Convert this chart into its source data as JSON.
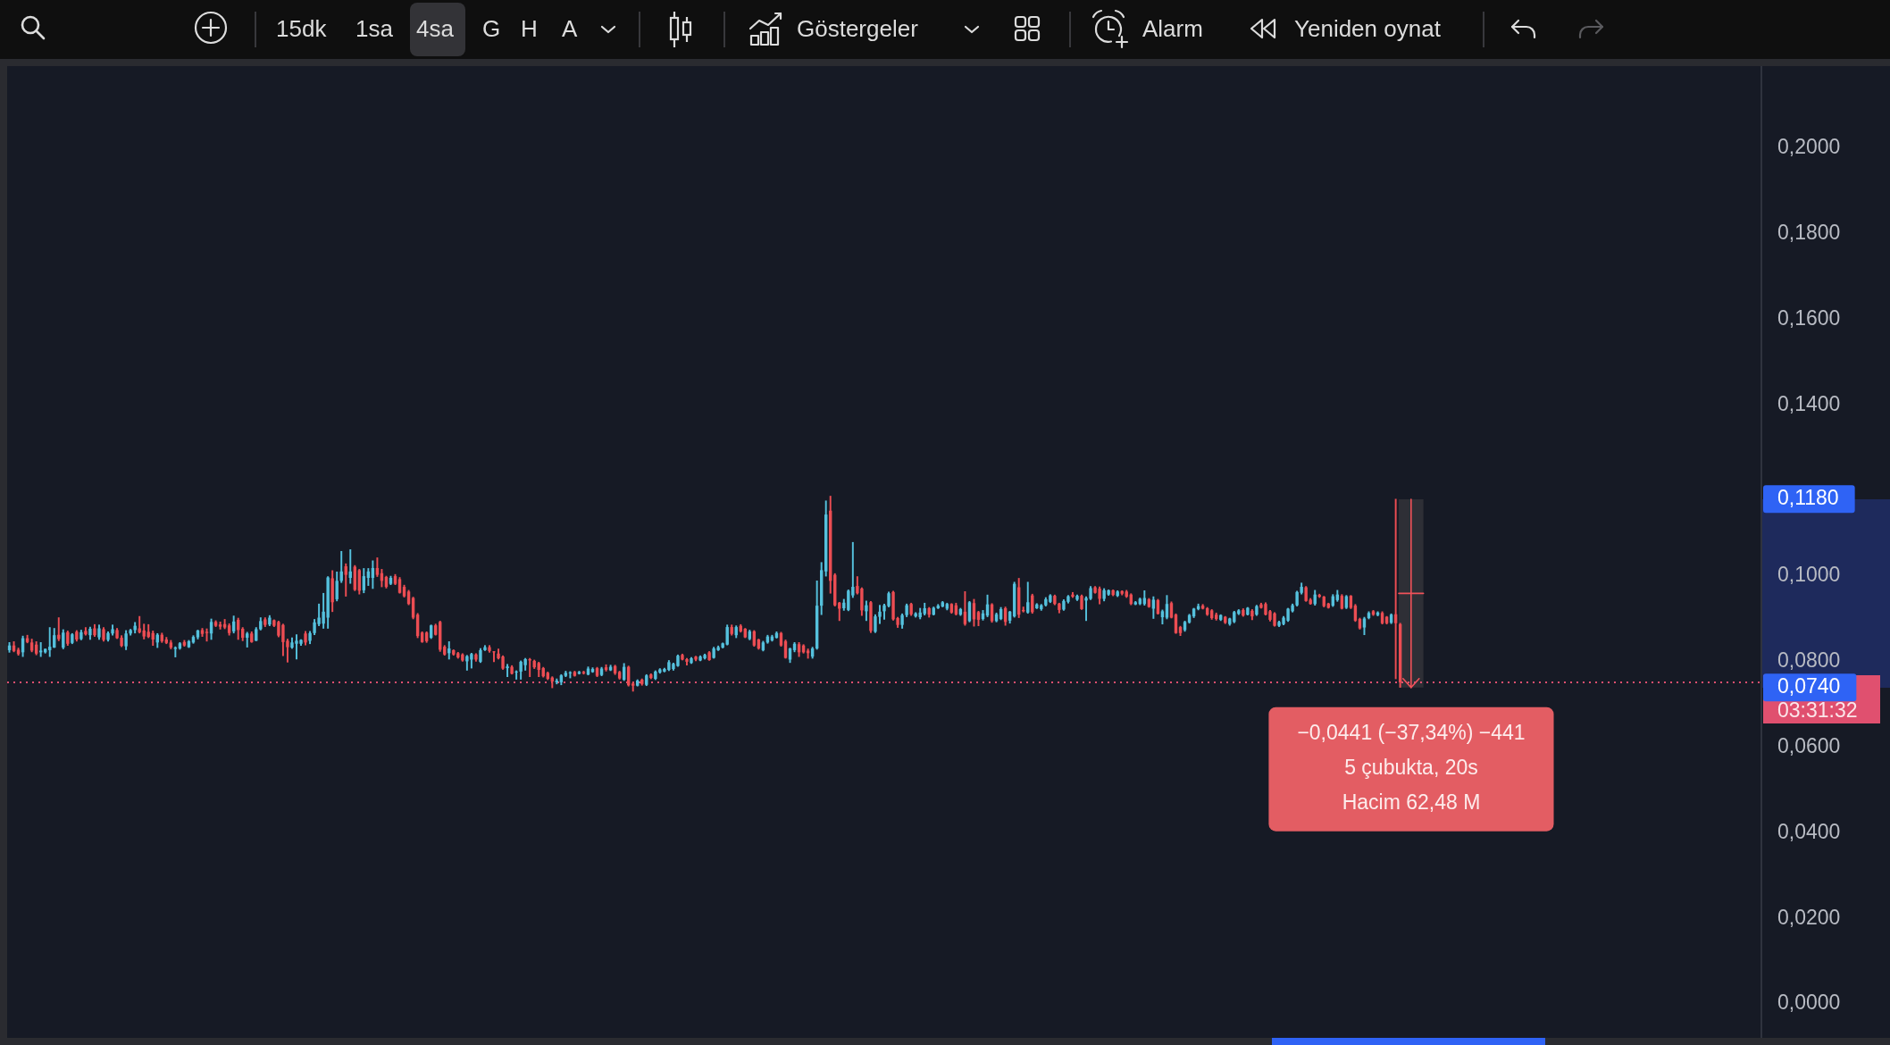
{
  "chart_data": {
    "type": "candlestick",
    "categories": [
      null,
      null,
      null,
      null,
      null,
      null,
      null,
      null,
      null,
      null,
      null,
      null,
      null,
      null,
      null,
      null,
      null,
      null,
      null,
      null,
      null,
      null,
      null,
      null,
      null,
      null,
      null,
      null,
      null,
      null,
      null,
      null,
      null,
      null,
      null,
      null,
      null,
      null,
      null,
      null,
      null,
      null,
      null,
      null,
      null,
      null,
      null,
      null,
      null,
      null,
      null,
      null,
      null,
      null,
      null,
      null,
      null,
      null,
      null,
      null,
      null,
      null,
      null,
      null,
      null,
      null,
      null,
      null,
      null,
      null,
      null,
      null,
      null,
      null,
      null,
      null,
      null,
      null,
      null,
      null,
      null,
      null,
      null,
      null,
      null,
      null,
      null,
      null,
      null,
      null,
      null,
      null,
      null,
      null,
      null,
      null,
      null,
      null,
      null,
      null,
      null,
      null,
      null,
      null,
      null,
      null,
      null,
      null,
      null,
      null,
      null,
      null,
      null,
      null,
      null,
      null,
      null,
      null,
      null,
      null,
      null,
      null,
      null,
      null,
      null,
      null,
      null,
      null,
      null,
      null,
      null,
      null,
      null,
      null,
      null,
      null,
      null,
      null,
      null,
      null,
      null,
      null,
      null,
      null,
      null,
      null,
      null,
      null,
      null,
      null,
      null,
      null,
      null,
      null,
      null,
      null,
      null,
      null,
      null,
      null,
      null,
      null,
      null,
      null,
      null,
      null,
      null,
      null,
      null,
      null,
      null,
      null,
      null,
      null,
      null,
      null,
      null,
      null,
      null,
      null,
      null,
      null,
      null,
      null,
      null,
      null,
      null,
      null,
      null,
      null,
      null,
      null,
      null,
      null,
      null,
      null,
      null,
      null,
      null,
      null,
      null,
      null,
      null,
      null,
      null,
      null,
      null,
      null,
      null,
      null,
      null,
      null,
      null,
      null,
      null,
      null,
      null,
      null,
      null,
      null,
      null,
      null,
      null,
      null,
      null,
      null,
      null,
      null,
      null,
      null,
      null,
      null,
      null,
      null,
      null,
      null,
      null,
      null,
      null,
      null,
      null,
      null,
      null,
      null,
      null,
      null,
      null,
      null,
      null,
      null,
      null,
      null,
      null,
      null,
      null,
      null,
      null,
      null,
      null,
      null,
      null,
      null,
      null,
      null,
      null,
      null,
      null,
      null,
      null,
      null,
      null,
      null,
      null,
      null,
      null,
      null,
      null,
      null,
      null,
      null,
      null,
      null,
      null,
      null,
      null,
      null,
      null,
      null,
      null,
      null,
      null,
      null,
      null,
      null,
      null,
      null,
      null,
      null,
      null,
      null,
      null,
      null,
      null,
      null,
      null,
      null,
      null,
      null,
      null,
      null,
      null,
      null,
      null,
      null,
      null,
      null,
      null,
      null,
      null,
      null,
      null,
      null,
      null,
      null,
      null,
      null,
      null,
      null,
      null,
      null,
      null,
      null,
      null,
      null,
      null,
      null,
      null,
      null,
      null,
      null,
      null,
      null,
      null,
      null,
      null,
      null,
      null,
      null,
      null,
      null,
      null,
      null,
      null,
      null,
      null,
      null,
      null,
      null,
      null,
      null,
      null,
      null,
      null,
      null,
      null,
      null,
      null,
      null,
      null,
      null,
      null,
      null,
      null,
      null,
      null,
      null,
      null,
      null,
      null,
      null,
      null,
      null,
      null,
      null,
      null,
      null,
      null,
      null,
      null,
      null,
      null
    ],
    "ohlc": [
      [
        0.0827,
        0.0845,
        0.0822,
        0.0838
      ],
      [
        0.0838,
        0.0847,
        0.0823,
        0.0825
      ],
      [
        0.0828,
        0.0832,
        0.0815,
        0.0818
      ],
      [
        0.0822,
        0.086,
        0.0812,
        0.0855
      ],
      [
        0.0855,
        0.0862,
        0.0844,
        0.0846
      ],
      [
        0.0845,
        0.0853,
        0.0823,
        0.0826
      ],
      [
        0.084,
        0.0847,
        0.0816,
        0.0819
      ],
      [
        0.0822,
        0.0845,
        0.0812,
        0.0826
      ],
      [
        0.0822,
        0.083,
        0.082,
        0.083
      ],
      [
        0.0827,
        0.088,
        0.0812,
        0.0835
      ],
      [
        0.0833,
        0.0878,
        0.0833,
        0.0862
      ],
      [
        0.0863,
        0.0903,
        0.0849,
        0.0853
      ],
      [
        0.0833,
        0.0875,
        0.083,
        0.0868
      ],
      [
        0.0869,
        0.0872,
        0.0838,
        0.0842
      ],
      [
        0.0844,
        0.0866,
        0.0842,
        0.0864
      ],
      [
        0.087,
        0.0873,
        0.0848,
        0.0852
      ],
      [
        0.0853,
        0.0874,
        0.0851,
        0.0869
      ],
      [
        0.0872,
        0.088,
        0.0862,
        0.0864
      ],
      [
        0.0862,
        0.0881,
        0.0852,
        0.0877
      ],
      [
        0.0878,
        0.0887,
        0.0859,
        0.0862
      ],
      [
        0.0857,
        0.0886,
        0.0852,
        0.0878
      ],
      [
        0.0876,
        0.088,
        0.0848,
        0.0851
      ],
      [
        0.0851,
        0.087,
        0.0848,
        0.0867
      ],
      [
        0.0866,
        0.0886,
        0.0862,
        0.0876
      ],
      [
        0.0874,
        0.0878,
        0.0854,
        0.0855
      ],
      [
        0.0856,
        0.0861,
        0.0835,
        0.0837
      ],
      [
        0.0836,
        0.0873,
        0.0828,
        0.0866
      ],
      [
        0.0866,
        0.0876,
        0.0862,
        0.0874
      ],
      [
        0.0874,
        0.0892,
        0.0867,
        0.0884
      ],
      [
        0.0878,
        0.0906,
        0.0867,
        0.0869
      ],
      [
        0.0873,
        0.0888,
        0.0853,
        0.0859
      ],
      [
        0.087,
        0.0887,
        0.0856,
        0.0858
      ],
      [
        0.0867,
        0.0872,
        0.0838,
        0.0852
      ],
      [
        0.0845,
        0.0866,
        0.0833,
        0.0863
      ],
      [
        0.0863,
        0.0867,
        0.0845,
        0.0848
      ],
      [
        0.0852,
        0.0857,
        0.0842,
        0.0844
      ],
      [
        0.0845,
        0.085,
        0.083,
        0.0833
      ],
      [
        0.083,
        0.0835,
        0.0811,
        0.0833
      ],
      [
        0.0831,
        0.0845,
        0.0829,
        0.0843
      ],
      [
        0.0846,
        0.085,
        0.0836,
        0.0838
      ],
      [
        0.0834,
        0.085,
        0.0833,
        0.0848
      ],
      [
        0.0845,
        0.0861,
        0.0843,
        0.0858
      ],
      [
        0.0857,
        0.0874,
        0.0853,
        0.0873
      ],
      [
        0.0874,
        0.0878,
        0.0859,
        0.0865
      ],
      [
        0.087,
        0.0877,
        0.0848,
        0.0867
      ],
      [
        0.0866,
        0.09,
        0.0852,
        0.0893
      ],
      [
        0.0893,
        0.0896,
        0.0882,
        0.0884
      ],
      [
        0.0887,
        0.0893,
        0.0876,
        0.0882
      ],
      [
        0.0888,
        0.0899,
        0.0877,
        0.088
      ],
      [
        0.0885,
        0.0889,
        0.0862,
        0.0867
      ],
      [
        0.0871,
        0.0907,
        0.0867,
        0.0894
      ],
      [
        0.0898,
        0.0902,
        0.0852,
        0.0874
      ],
      [
        0.0877,
        0.088,
        0.0849,
        0.0856
      ],
      [
        0.0856,
        0.0869,
        0.0834,
        0.0866
      ],
      [
        0.0866,
        0.087,
        0.0845,
        0.0846
      ],
      [
        0.0849,
        0.088,
        0.0849,
        0.0876
      ],
      [
        0.0876,
        0.0903,
        0.0874,
        0.0895
      ],
      [
        0.0899,
        0.0903,
        0.0882,
        0.0886
      ],
      [
        0.0887,
        0.0908,
        0.0884,
        0.0903
      ],
      [
        0.0897,
        0.0898,
        0.0882,
        0.0884
      ],
      [
        0.0893,
        0.0895,
        0.0858,
        0.0861
      ],
      [
        0.0886,
        0.0888,
        0.0814,
        0.0846
      ],
      [
        0.0849,
        0.0853,
        0.0799,
        0.0834
      ],
      [
        0.0833,
        0.0856,
        0.0831,
        0.0845
      ],
      [
        0.0842,
        0.0863,
        0.0806,
        0.0849
      ],
      [
        0.0842,
        0.0852,
        0.0838,
        0.0851
      ],
      [
        0.0866,
        0.0871,
        0.0839,
        0.0845
      ],
      [
        0.0849,
        0.0871,
        0.0842,
        0.0867
      ],
      [
        0.0867,
        0.0899,
        0.0863,
        0.0892
      ],
      [
        0.0888,
        0.0935,
        0.0884,
        0.0903
      ],
      [
        0.0889,
        0.096,
        0.0878,
        0.0917
      ],
      [
        0.0903,
        0.0999,
        0.0878,
        0.0997
      ],
      [
        0.0995,
        0.1013,
        0.0917,
        0.0939
      ],
      [
        0.0946,
        0.101,
        0.0942,
        0.0989
      ],
      [
        0.0989,
        0.1058,
        0.0985,
        0.1011
      ],
      [
        0.1023,
        0.1029,
        0.0953,
        0.1003
      ],
      [
        0.0996,
        0.1062,
        0.0983,
        0.1011
      ],
      [
        0.1022,
        0.1025,
        0.0966,
        0.0968
      ],
      [
        0.1014,
        0.1016,
        0.0958,
        0.0966
      ],
      [
        0.0967,
        0.1018,
        0.0961,
        0.1
      ],
      [
        0.0996,
        0.1018,
        0.0978,
        0.1011
      ],
      [
        0.0996,
        0.1036,
        0.0971,
        0.1019
      ],
      [
        0.1019,
        0.1043,
        0.0999,
        0.1003
      ],
      [
        0.1007,
        0.1016,
        0.0975,
        0.0989
      ],
      [
        0.0998,
        0.1,
        0.0972,
        0.0975
      ],
      [
        0.0982,
        0.1,
        0.098,
        0.0996
      ],
      [
        0.1,
        0.1004,
        0.098,
        0.0982
      ],
      [
        0.0993,
        0.0997,
        0.096,
        0.0961
      ],
      [
        0.0975,
        0.0979,
        0.0951,
        0.0953
      ],
      [
        0.0964,
        0.0967,
        0.0933,
        0.0935
      ],
      [
        0.0949,
        0.0951,
        0.09,
        0.0903
      ],
      [
        0.091,
        0.0913,
        0.0856,
        0.086
      ],
      [
        0.0868,
        0.087,
        0.0845,
        0.0846
      ],
      [
        0.0868,
        0.087,
        0.0845,
        0.0848
      ],
      [
        0.0856,
        0.0886,
        0.0854,
        0.0885
      ],
      [
        0.0885,
        0.0888,
        0.0862,
        0.0863
      ],
      [
        0.0893,
        0.0895,
        0.0824,
        0.0828
      ],
      [
        0.0835,
        0.0838,
        0.0815,
        0.0817
      ],
      [
        0.082,
        0.0847,
        0.0806,
        0.0831
      ],
      [
        0.0827,
        0.0828,
        0.0815,
        0.0817
      ],
      [
        0.082,
        0.0822,
        0.0808,
        0.081
      ],
      [
        0.0817,
        0.0819,
        0.0801,
        0.0803
      ],
      [
        0.0801,
        0.0815,
        0.078,
        0.0813
      ],
      [
        0.0805,
        0.082,
        0.0785,
        0.0818
      ],
      [
        0.0817,
        0.0819,
        0.0801,
        0.0805
      ],
      [
        0.08,
        0.0831,
        0.0798,
        0.0827
      ],
      [
        0.0827,
        0.0838,
        0.0826,
        0.0834
      ],
      [
        0.0834,
        0.0838,
        0.0822,
        0.0825
      ],
      [
        0.0823,
        0.0824,
        0.08,
        0.0822
      ],
      [
        0.0819,
        0.083,
        0.0806,
        0.0808
      ],
      [
        0.0812,
        0.0814,
        0.0782,
        0.0784
      ],
      [
        0.0785,
        0.0794,
        0.0765,
        0.0789
      ],
      [
        0.0788,
        0.0791,
        0.0771,
        0.0772
      ],
      [
        0.0775,
        0.0779,
        0.0759,
        0.0777
      ],
      [
        0.0777,
        0.0802,
        0.0759,
        0.08
      ],
      [
        0.0792,
        0.0808,
        0.078,
        0.0806
      ],
      [
        0.0806,
        0.0808,
        0.0765,
        0.0803
      ],
      [
        0.0802,
        0.0804,
        0.0784,
        0.0787
      ],
      [
        0.0797,
        0.0799,
        0.0765,
        0.0781
      ],
      [
        0.0785,
        0.0787,
        0.0764,
        0.0766
      ],
      [
        0.0774,
        0.0776,
        0.0758,
        0.076
      ],
      [
        0.0763,
        0.0765,
        0.0739,
        0.0754
      ],
      [
        0.0752,
        0.076,
        0.0748,
        0.0756
      ],
      [
        0.0752,
        0.077,
        0.0746,
        0.0768
      ],
      [
        0.0767,
        0.0778,
        0.0765,
        0.0774
      ],
      [
        0.0773,
        0.0777,
        0.0762,
        0.0775
      ],
      [
        0.0776,
        0.0778,
        0.0766,
        0.0767
      ],
      [
        0.0772,
        0.0778,
        0.0771,
        0.0776
      ],
      [
        0.0776,
        0.0778,
        0.0771,
        0.0773
      ],
      [
        0.077,
        0.0788,
        0.0769,
        0.0784
      ],
      [
        0.0776,
        0.0786,
        0.0775,
        0.0783
      ],
      [
        0.0785,
        0.0787,
        0.0765,
        0.0767
      ],
      [
        0.0769,
        0.0787,
        0.0767,
        0.0784
      ],
      [
        0.0787,
        0.0793,
        0.0778,
        0.0781
      ],
      [
        0.078,
        0.0792,
        0.0779,
        0.0788
      ],
      [
        0.079,
        0.0792,
        0.077,
        0.0773
      ],
      [
        0.0776,
        0.0778,
        0.0759,
        0.0761
      ],
      [
        0.0758,
        0.0796,
        0.0756,
        0.0788
      ],
      [
        0.0788,
        0.079,
        0.0743,
        0.0745
      ],
      [
        0.0749,
        0.0752,
        0.0731,
        0.0744
      ],
      [
        0.0744,
        0.0758,
        0.0743,
        0.0756
      ],
      [
        0.0758,
        0.076,
        0.0745,
        0.0748
      ],
      [
        0.0746,
        0.077,
        0.0744,
        0.0768
      ],
      [
        0.077,
        0.0772,
        0.076,
        0.0762
      ],
      [
        0.076,
        0.0779,
        0.0758,
        0.0777
      ],
      [
        0.0775,
        0.0784,
        0.0773,
        0.0782
      ],
      [
        0.0777,
        0.0785,
        0.0776,
        0.0783
      ],
      [
        0.0781,
        0.0803,
        0.0779,
        0.0799
      ],
      [
        0.0783,
        0.0797,
        0.078,
        0.0795
      ],
      [
        0.079,
        0.0816,
        0.0789,
        0.0814
      ],
      [
        0.0816,
        0.0818,
        0.0804,
        0.0805
      ],
      [
        0.0806,
        0.0808,
        0.0792,
        0.08
      ],
      [
        0.0797,
        0.081,
        0.0796,
        0.0808
      ],
      [
        0.0812,
        0.0813,
        0.0802,
        0.0805
      ],
      [
        0.0803,
        0.0814,
        0.0802,
        0.0812
      ],
      [
        0.0808,
        0.0818,
        0.0806,
        0.0816
      ],
      [
        0.0822,
        0.0824,
        0.0803,
        0.0804
      ],
      [
        0.0809,
        0.0834,
        0.0808,
        0.0831
      ],
      [
        0.0827,
        0.0837,
        0.0826,
        0.0834
      ],
      [
        0.0833,
        0.0844,
        0.0832,
        0.0843
      ],
      [
        0.084,
        0.0886,
        0.0839,
        0.0881
      ],
      [
        0.0881,
        0.0886,
        0.0862,
        0.0865
      ],
      [
        0.0862,
        0.0884,
        0.0856,
        0.0881
      ],
      [
        0.0884,
        0.0887,
        0.0869,
        0.0871
      ],
      [
        0.0877,
        0.0878,
        0.0856,
        0.0857
      ],
      [
        0.0853,
        0.0874,
        0.0851,
        0.0871
      ],
      [
        0.0871,
        0.0873,
        0.0836,
        0.0838
      ],
      [
        0.0852,
        0.0853,
        0.0829,
        0.0831
      ],
      [
        0.0827,
        0.0848,
        0.0825,
        0.0845
      ],
      [
        0.0845,
        0.0862,
        0.0843,
        0.0859
      ],
      [
        0.085,
        0.0862,
        0.0848,
        0.0859
      ],
      [
        0.0856,
        0.087,
        0.0855,
        0.0867
      ],
      [
        0.0867,
        0.0869,
        0.0836,
        0.0838
      ],
      [
        0.0848,
        0.0851,
        0.0808,
        0.0809
      ],
      [
        0.0805,
        0.0832,
        0.0798,
        0.0831
      ],
      [
        0.0827,
        0.0845,
        0.0823,
        0.0842
      ],
      [
        0.0841,
        0.0845,
        0.0812,
        0.0822
      ],
      [
        0.0838,
        0.084,
        0.082,
        0.0822
      ],
      [
        0.0826,
        0.083,
        0.0808,
        0.082
      ],
      [
        0.0812,
        0.0834,
        0.0808,
        0.0831
      ],
      [
        0.0831,
        0.0989,
        0.0829,
        0.0931
      ],
      [
        0.0931,
        0.1032,
        0.091,
        0.1014
      ],
      [
        0.1011,
        0.1176,
        0.1,
        0.1144
      ],
      [
        0.1153,
        0.1187,
        0.096,
        0.0989
      ],
      [
        0.1003,
        0.1006,
        0.093,
        0.0932
      ],
      [
        0.0938,
        0.0939,
        0.0896,
        0.0924
      ],
      [
        0.0925,
        0.0946,
        0.092,
        0.0938
      ],
      [
        0.0921,
        0.0968,
        0.0919,
        0.0966
      ],
      [
        0.0955,
        0.1079,
        0.095,
        0.0975
      ],
      [
        0.0977,
        0.0999,
        0.0958,
        0.096
      ],
      [
        0.0971,
        0.0973,
        0.0908,
        0.092
      ],
      [
        0.0918,
        0.0942,
        0.0896,
        0.0932
      ],
      [
        0.0939,
        0.0941,
        0.0868,
        0.0872
      ],
      [
        0.087,
        0.091,
        0.0868,
        0.0906
      ],
      [
        0.0905,
        0.0932,
        0.0889,
        0.0917
      ],
      [
        0.0918,
        0.0935,
        0.0899,
        0.0932
      ],
      [
        0.093,
        0.0963,
        0.0928,
        0.096
      ],
      [
        0.0963,
        0.0965,
        0.0897,
        0.0899
      ],
      [
        0.0902,
        0.0904,
        0.088,
        0.0886
      ],
      [
        0.0886,
        0.0912,
        0.0878,
        0.0909
      ],
      [
        0.0909,
        0.0935,
        0.0905,
        0.0932
      ],
      [
        0.0935,
        0.0937,
        0.0908,
        0.0911
      ],
      [
        0.0906,
        0.0915,
        0.0904,
        0.0913
      ],
      [
        0.0904,
        0.0925,
        0.09,
        0.0915
      ],
      [
        0.0912,
        0.0937,
        0.0909,
        0.0925
      ],
      [
        0.0925,
        0.0927,
        0.0904,
        0.091
      ],
      [
        0.091,
        0.0928,
        0.0909,
        0.0926
      ],
      [
        0.0925,
        0.0934,
        0.0924,
        0.0931
      ],
      [
        0.0929,
        0.0941,
        0.0928,
        0.0939
      ],
      [
        0.0924,
        0.0937,
        0.0921,
        0.0935
      ],
      [
        0.0935,
        0.0936,
        0.0913,
        0.0915
      ],
      [
        0.0932,
        0.0937,
        0.0909,
        0.0911
      ],
      [
        0.091,
        0.0925,
        0.0908,
        0.0923
      ],
      [
        0.0917,
        0.0964,
        0.0885,
        0.0888
      ],
      [
        0.0895,
        0.0941,
        0.0893,
        0.0939
      ],
      [
        0.0937,
        0.0946,
        0.0883,
        0.0899
      ],
      [
        0.0916,
        0.0918,
        0.0884,
        0.0898
      ],
      [
        0.09,
        0.092,
        0.0897,
        0.0913
      ],
      [
        0.0908,
        0.0956,
        0.0905,
        0.0934
      ],
      [
        0.0934,
        0.0936,
        0.0892,
        0.0895
      ],
      [
        0.0895,
        0.0914,
        0.0893,
        0.0911
      ],
      [
        0.09,
        0.0927,
        0.0898,
        0.0923
      ],
      [
        0.0925,
        0.0928,
        0.0885,
        0.0893
      ],
      [
        0.0896,
        0.0918,
        0.089,
        0.0917
      ],
      [
        0.0906,
        0.0986,
        0.0904,
        0.0982
      ],
      [
        0.0974,
        0.0995,
        0.0903,
        0.091
      ],
      [
        0.0921,
        0.0928,
        0.0916,
        0.0918
      ],
      [
        0.0915,
        0.0986,
        0.0913,
        0.0939
      ],
      [
        0.0955,
        0.0958,
        0.0913,
        0.0916
      ],
      [
        0.0925,
        0.0936,
        0.0924,
        0.0934
      ],
      [
        0.0923,
        0.0934,
        0.092,
        0.0932
      ],
      [
        0.0932,
        0.095,
        0.093,
        0.0946
      ],
      [
        0.094,
        0.0957,
        0.0938,
        0.0955
      ],
      [
        0.0954,
        0.0956,
        0.0933,
        0.0935
      ],
      [
        0.0936,
        0.0937,
        0.0914,
        0.0921
      ],
      [
        0.0922,
        0.0945,
        0.092,
        0.0942
      ],
      [
        0.094,
        0.0955,
        0.0937,
        0.0953
      ],
      [
        0.0957,
        0.0962,
        0.095,
        0.0952
      ],
      [
        0.0945,
        0.0956,
        0.0943,
        0.0954
      ],
      [
        0.0954,
        0.0956,
        0.0922,
        0.0923
      ],
      [
        0.0943,
        0.0952,
        0.0896,
        0.0949
      ],
      [
        0.0947,
        0.0976,
        0.0945,
        0.0972
      ],
      [
        0.0974,
        0.0976,
        0.096,
        0.0961
      ],
      [
        0.0971,
        0.0975,
        0.0935,
        0.0947
      ],
      [
        0.0947,
        0.0971,
        0.0942,
        0.0967
      ],
      [
        0.0957,
        0.0968,
        0.0955,
        0.0967
      ],
      [
        0.0967,
        0.0968,
        0.0954,
        0.0956
      ],
      [
        0.0954,
        0.0966,
        0.0952,
        0.0964
      ],
      [
        0.0965,
        0.0966,
        0.0956,
        0.0959
      ],
      [
        0.0964,
        0.0967,
        0.095,
        0.0952
      ],
      [
        0.0957,
        0.0959,
        0.0933,
        0.0935
      ],
      [
        0.0934,
        0.0941,
        0.0933,
        0.0939
      ],
      [
        0.0935,
        0.0949,
        0.0933,
        0.0947
      ],
      [
        0.0935,
        0.0966,
        0.0932,
        0.0949
      ],
      [
        0.0946,
        0.0948,
        0.0927,
        0.0928
      ],
      [
        0.0924,
        0.0952,
        0.0901,
        0.0945
      ],
      [
        0.0944,
        0.0946,
        0.0911,
        0.0912
      ],
      [
        0.0904,
        0.0921,
        0.0888,
        0.0918
      ],
      [
        0.0903,
        0.0955,
        0.09,
        0.0935
      ],
      [
        0.0937,
        0.094,
        0.0902,
        0.0903
      ],
      [
        0.091,
        0.0912,
        0.0866,
        0.0867
      ],
      [
        0.0881,
        0.0883,
        0.0861,
        0.0867
      ],
      [
        0.0874,
        0.0895,
        0.0871,
        0.0893
      ],
      [
        0.0892,
        0.0911,
        0.089,
        0.0909
      ],
      [
        0.0906,
        0.0925,
        0.0903,
        0.0924
      ],
      [
        0.0923,
        0.0935,
        0.0921,
        0.093
      ],
      [
        0.0931,
        0.0934,
        0.0923,
        0.0924
      ],
      [
        0.0925,
        0.0927,
        0.0908,
        0.091
      ],
      [
        0.092,
        0.0922,
        0.0899,
        0.0902
      ],
      [
        0.091,
        0.0914,
        0.0897,
        0.09
      ],
      [
        0.0898,
        0.091,
        0.0896,
        0.0909
      ],
      [
        0.0905,
        0.0906,
        0.0889,
        0.0891
      ],
      [
        0.0888,
        0.0902,
        0.0885,
        0.0901
      ],
      [
        0.0893,
        0.0918,
        0.0891,
        0.0916
      ],
      [
        0.0912,
        0.0922,
        0.091,
        0.092
      ],
      [
        0.0921,
        0.0924,
        0.0906,
        0.0908
      ],
      [
        0.091,
        0.0927,
        0.0909,
        0.0926
      ],
      [
        0.0919,
        0.0922,
        0.0898,
        0.0906
      ],
      [
        0.091,
        0.0932,
        0.0908,
        0.093
      ],
      [
        0.0934,
        0.0937,
        0.0925,
        0.0926
      ],
      [
        0.0935,
        0.0938,
        0.0909,
        0.091
      ],
      [
        0.0918,
        0.092,
        0.0895,
        0.0898
      ],
      [
        0.0913,
        0.0915,
        0.0883,
        0.0884
      ],
      [
        0.0884,
        0.0895,
        0.0882,
        0.0893
      ],
      [
        0.0888,
        0.0906,
        0.0886,
        0.0903
      ],
      [
        0.0896,
        0.0925,
        0.0894,
        0.0924
      ],
      [
        0.0918,
        0.0935,
        0.0916,
        0.0932
      ],
      [
        0.0932,
        0.0965,
        0.093,
        0.0963
      ],
      [
        0.0961,
        0.0984,
        0.0958,
        0.0975
      ],
      [
        0.0974,
        0.0976,
        0.0941,
        0.0942
      ],
      [
        0.0945,
        0.0948,
        0.0934,
        0.0935
      ],
      [
        0.0935,
        0.0967,
        0.0932,
        0.0957
      ],
      [
        0.0956,
        0.0958,
        0.095,
        0.0952
      ],
      [
        0.0952,
        0.0953,
        0.0928,
        0.093
      ],
      [
        0.0936,
        0.0937,
        0.0925,
        0.0926
      ],
      [
        0.0931,
        0.0957,
        0.0929,
        0.0953
      ],
      [
        0.0944,
        0.0967,
        0.0941,
        0.0957
      ],
      [
        0.0954,
        0.0957,
        0.0923,
        0.0924
      ],
      [
        0.0926,
        0.0955,
        0.0924,
        0.0953
      ],
      [
        0.0954,
        0.0955,
        0.0924,
        0.0926
      ],
      [
        0.0931,
        0.0934,
        0.0894,
        0.0896
      ],
      [
        0.09,
        0.0902,
        0.0876,
        0.0878
      ],
      [
        0.088,
        0.0904,
        0.0863,
        0.0901
      ],
      [
        0.0902,
        0.0917,
        0.09,
        0.0914
      ],
      [
        0.0918,
        0.092,
        0.0908,
        0.091
      ],
      [
        0.0909,
        0.0917,
        0.0907,
        0.0915
      ],
      [
        0.0914,
        0.0917,
        0.0888,
        0.089
      ],
      [
        0.0905,
        0.0906,
        0.0888,
        0.089
      ],
      [
        0.0891,
        0.0912,
        0.0889,
        0.091
      ],
      [
        0.0911,
        0.118,
        0.076,
        0.089
      ],
      [
        0.0888,
        0.089,
        0.074,
        0.0752
      ],
      null,
      null,
      null,
      null,
      null,
      null,
      null,
      null,
      null,
      null,
      null,
      null,
      null,
      null,
      null,
      null,
      null,
      null,
      null,
      null,
      null,
      null,
      null,
      null,
      null,
      null,
      null,
      null,
      null,
      null,
      null,
      null,
      null,
      null,
      null,
      null,
      null,
      null,
      null,
      null,
      null,
      null,
      null,
      null,
      null,
      null,
      null,
      null,
      null,
      null,
      null,
      null,
      null,
      null,
      null,
      null,
      null,
      null,
      null,
      null,
      null,
      null,
      null,
      null,
      null,
      null,
      null,
      null,
      null,
      null,
      null,
      null,
      null,
      null,
      null,
      null,
      null,
      null,
      null,
      null
    ],
    "colors": [
      "#55c1dd",
      "#ec4d53",
      "#ec4d53",
      "#55c1dd",
      "#ec4d53",
      "#ec4d53",
      "#ec4d53",
      "#55c1dd",
      "#55c1dd",
      "#55c1dd",
      "#55c1dd",
      "#ec4d53",
      "#55c1dd",
      "#ec4d53",
      "#55c1dd",
      "#ec4d53",
      "#55c1dd",
      "#ec4d53",
      "#55c1dd",
      "#ec4d53",
      "#55c1dd",
      "#ec4d53",
      "#55c1dd",
      "#55c1dd",
      "#ec4d53",
      "#ec4d53",
      "#55c1dd",
      "#55c1dd",
      "#55c1dd",
      "#ec4d53",
      "#ec4d53",
      "#ec4d53",
      "#ec4d53",
      "#55c1dd",
      "#ec4d53",
      "#ec4d53",
      "#ec4d53",
      "#55c1dd",
      "#55c1dd",
      "#ec4d53",
      "#55c1dd",
      "#55c1dd",
      "#55c1dd",
      "#ec4d53",
      "#ec4d53",
      "#55c1dd",
      "#ec4d53",
      "#ec4d53",
      "#ec4d53",
      "#ec4d53",
      "#55c1dd",
      "#ec4d53",
      "#ec4d53",
      "#55c1dd",
      "#ec4d53",
      "#55c1dd",
      "#55c1dd",
      "#ec4d53",
      "#55c1dd",
      "#ec4d53",
      "#ec4d53",
      "#ec4d53",
      "#ec4d53",
      "#55c1dd",
      "#55c1dd",
      "#55c1dd",
      "#ec4d53",
      "#55c1dd",
      "#55c1dd",
      "#55c1dd",
      "#55c1dd",
      "#55c1dd",
      "#ec4d53",
      "#55c1dd",
      "#55c1dd",
      "#ec4d53",
      "#55c1dd",
      "#ec4d53",
      "#ec4d53",
      "#55c1dd",
      "#55c1dd",
      "#55c1dd",
      "#ec4d53",
      "#ec4d53",
      "#ec4d53",
      "#55c1dd",
      "#ec4d53",
      "#ec4d53",
      "#ec4d53",
      "#ec4d53",
      "#ec4d53",
      "#ec4d53",
      "#ec4d53",
      "#ec4d53",
      "#55c1dd",
      "#ec4d53",
      "#ec4d53",
      "#ec4d53",
      "#55c1dd",
      "#ec4d53",
      "#ec4d53",
      "#ec4d53",
      "#55c1dd",
      "#55c1dd",
      "#ec4d53",
      "#55c1dd",
      "#55c1dd",
      "#ec4d53",
      "#ec4d53",
      "#ec4d53",
      "#ec4d53",
      "#55c1dd",
      "#ec4d53",
      "#55c1dd",
      "#55c1dd",
      "#55c1dd",
      "#ec4d53",
      "#ec4d53",
      "#ec4d53",
      "#ec4d53",
      "#ec4d53",
      "#ec4d53",
      "#55c1dd",
      "#55c1dd",
      "#55c1dd",
      "#55c1dd",
      "#ec4d53",
      "#55c1dd",
      "#ec4d53",
      "#55c1dd",
      "#55c1dd",
      "#ec4d53",
      "#55c1dd",
      "#ec4d53",
      "#55c1dd",
      "#ec4d53",
      "#ec4d53",
      "#55c1dd",
      "#ec4d53",
      "#ec4d53",
      "#55c1dd",
      "#ec4d53",
      "#55c1dd",
      "#ec4d53",
      "#55c1dd",
      "#55c1dd",
      "#55c1dd",
      "#55c1dd",
      "#55c1dd",
      "#55c1dd",
      "#ec4d53",
      "#ec4d53",
      "#55c1dd",
      "#ec4d53",
      "#55c1dd",
      "#55c1dd",
      "#ec4d53",
      "#55c1dd",
      "#55c1dd",
      "#55c1dd",
      "#55c1dd",
      "#ec4d53",
      "#55c1dd",
      "#ec4d53",
      "#ec4d53",
      "#55c1dd",
      "#ec4d53",
      "#ec4d53",
      "#55c1dd",
      "#55c1dd",
      "#55c1dd",
      "#55c1dd",
      "#ec4d53",
      "#ec4d53",
      "#55c1dd",
      "#55c1dd",
      "#ec4d53",
      "#ec4d53",
      "#ec4d53",
      "#55c1dd",
      "#55c1dd",
      "#55c1dd",
      "#55c1dd",
      "#ec4d53",
      "#ec4d53",
      "#ec4d53",
      "#55c1dd",
      "#55c1dd",
      "#55c1dd",
      "#ec4d53",
      "#ec4d53",
      "#55c1dd",
      "#ec4d53",
      "#55c1dd",
      "#55c1dd",
      "#55c1dd",
      "#55c1dd",
      "#ec4d53",
      "#ec4d53",
      "#55c1dd",
      "#55c1dd",
      "#ec4d53",
      "#55c1dd",
      "#55c1dd",
      "#55c1dd",
      "#ec4d53",
      "#55c1dd",
      "#55c1dd",
      "#55c1dd",
      "#55c1dd",
      "#ec4d53",
      "#ec4d53",
      "#55c1dd",
      "#ec4d53",
      "#55c1dd",
      "#ec4d53",
      "#ec4d53",
      "#55c1dd",
      "#55c1dd",
      "#ec4d53",
      "#55c1dd",
      "#55c1dd",
      "#ec4d53",
      "#55c1dd",
      "#55c1dd",
      "#ec4d53",
      "#ec4d53",
      "#55c1dd",
      "#ec4d53",
      "#55c1dd",
      "#55c1dd",
      "#55c1dd",
      "#55c1dd",
      "#ec4d53",
      "#ec4d53",
      "#55c1dd",
      "#55c1dd",
      "#ec4d53",
      "#55c1dd",
      "#ec4d53",
      "#55c1dd",
      "#55c1dd",
      "#ec4d53",
      "#ec4d53",
      "#55c1dd",
      "#55c1dd",
      "#ec4d53",
      "#55c1dd",
      "#ec4d53",
      "#ec4d53",
      "#ec4d53",
      "#55c1dd",
      "#55c1dd",
      "#55c1dd",
      "#ec4d53",
      "#55c1dd",
      "#ec4d53",
      "#55c1dd",
      "#55c1dd",
      "#ec4d53",
      "#ec4d53",
      "#ec4d53",
      "#55c1dd",
      "#55c1dd",
      "#55c1dd",
      "#55c1dd",
      "#ec4d53",
      "#ec4d53",
      "#ec4d53",
      "#ec4d53",
      "#55c1dd",
      "#ec4d53",
      "#55c1dd",
      "#55c1dd",
      "#55c1dd",
      "#ec4d53",
      "#55c1dd",
      "#ec4d53",
      "#55c1dd",
      "#ec4d53",
      "#ec4d53",
      "#ec4d53",
      "#ec4d53",
      "#55c1dd",
      "#55c1dd",
      "#55c1dd",
      "#55c1dd",
      "#55c1dd",
      "#55c1dd",
      "#ec4d53",
      "#ec4d53",
      "#55c1dd",
      "#ec4d53",
      "#ec4d53",
      "#ec4d53",
      "#55c1dd",
      "#55c1dd",
      "#ec4d53",
      "#55c1dd",
      "#ec4d53",
      "#ec4d53",
      "#ec4d53",
      "#55c1dd",
      "#55c1dd",
      "#ec4d53",
      "#55c1dd",
      "#ec4d53",
      "#ec4d53",
      "#55c1dd",
      "#ec4d53",
      "#ec4d53",
      null,
      null,
      null,
      null,
      null,
      null,
      null,
      null,
      null,
      null,
      null,
      null,
      null,
      null,
      null,
      null,
      null,
      null,
      null,
      null,
      null,
      null,
      null,
      null,
      null,
      null,
      null,
      null,
      null,
      null,
      null,
      null,
      null,
      null,
      null,
      null,
      null,
      null,
      null,
      null,
      null,
      null,
      null,
      null,
      null,
      null,
      null,
      null,
      null,
      null,
      null,
      null,
      null,
      null,
      null,
      null,
      null,
      null,
      null,
      null,
      null,
      null,
      null,
      null,
      null,
      null,
      null,
      null,
      null,
      null,
      null,
      null,
      null,
      null,
      null,
      null,
      null,
      null,
      null,
      null
    ],
    "ylim": [
      -0.0079,
      0.2192
    ],
    "yticks": [
      {
        "value": 0,
        "label": "0,0000"
      },
      {
        "value": 0.02,
        "label": "0,0200"
      },
      {
        "value": 0.04,
        "label": "0,0400"
      },
      {
        "value": 0.06,
        "label": "0,0600"
      },
      {
        "value": 0.08,
        "label": "0,0800"
      },
      {
        "value": 0.1,
        "label": "0,1000"
      },
      {
        "value": 0.14,
        "label": "0,1400"
      },
      {
        "value": 0.16,
        "label": "0,1600"
      },
      {
        "value": 0.18,
        "label": "0,1800"
      },
      {
        "value": 0.2,
        "label": "0,2000"
      }
    ],
    "ref_lines": [
      {
        "axis": "y",
        "value": 0.0752,
        "color": "#e0506f",
        "line_style": "dotted"
      }
    ],
    "annotations": [
      "15dk",
      "1sa",
      "4sa",
      "G",
      "H",
      "A",
      "Göstergeler",
      "Alarm",
      "Yeniden oynat",
      "−0,0441 (−37,34%) −441\n5 çubukta, 20s\nHacim 62,48 M",
      "03:31:32",
      "0,1180",
      "0,0740"
    ]
  }
}
